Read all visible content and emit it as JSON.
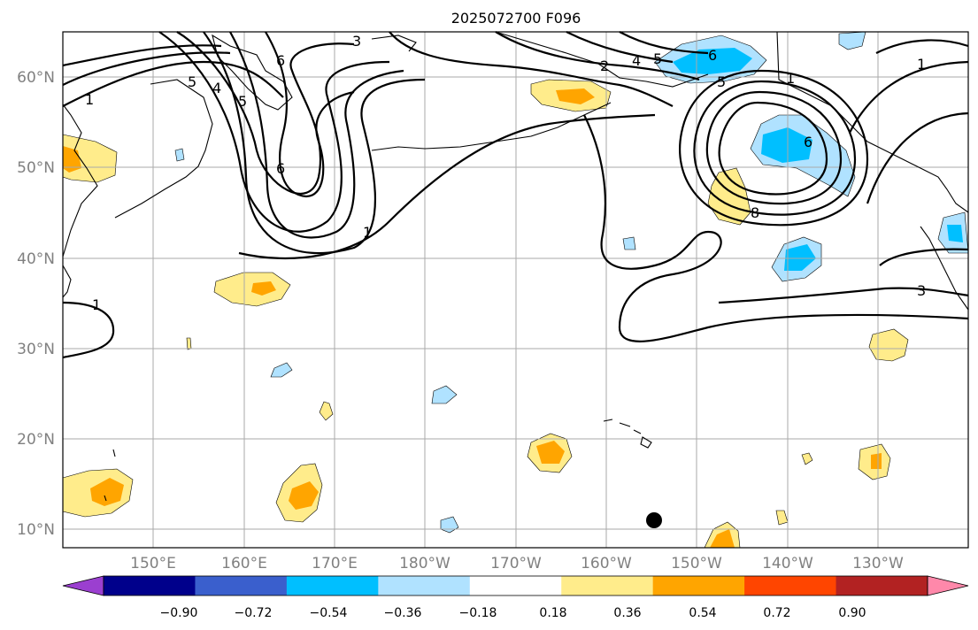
{
  "title": "2025072700 F096",
  "map": {
    "lat_ticks": [
      "60°N",
      "50°N",
      "40°N",
      "30°N",
      "20°N",
      "10°N"
    ],
    "lon_ticks": [
      "150°E",
      "160°E",
      "170°E",
      "180°W",
      "170°W",
      "160°W",
      "150°W",
      "140°W",
      "130°W"
    ],
    "contour_labels": [
      "3",
      "6",
      "5",
      "4",
      "5",
      "1",
      "1",
      "1",
      "2",
      "4",
      "5",
      "6",
      "5",
      "6",
      "8",
      "1",
      "3",
      "6",
      "1"
    ],
    "marker": "black-dot"
  },
  "colorbar": {
    "ticks": [
      "−0.90",
      "−0.72",
      "−0.54",
      "−0.36",
      "−0.18",
      "0.18",
      "0.36",
      "0.54",
      "0.72",
      "0.90"
    ],
    "colors": [
      "#9b3fd0",
      "#00008b",
      "#3a5fcd",
      "#00bfff",
      "#b0e2ff",
      "#ffffff",
      "#ffec8b",
      "#ffa500",
      "#ff4500",
      "#b22222",
      "#ff88aa"
    ]
  }
}
